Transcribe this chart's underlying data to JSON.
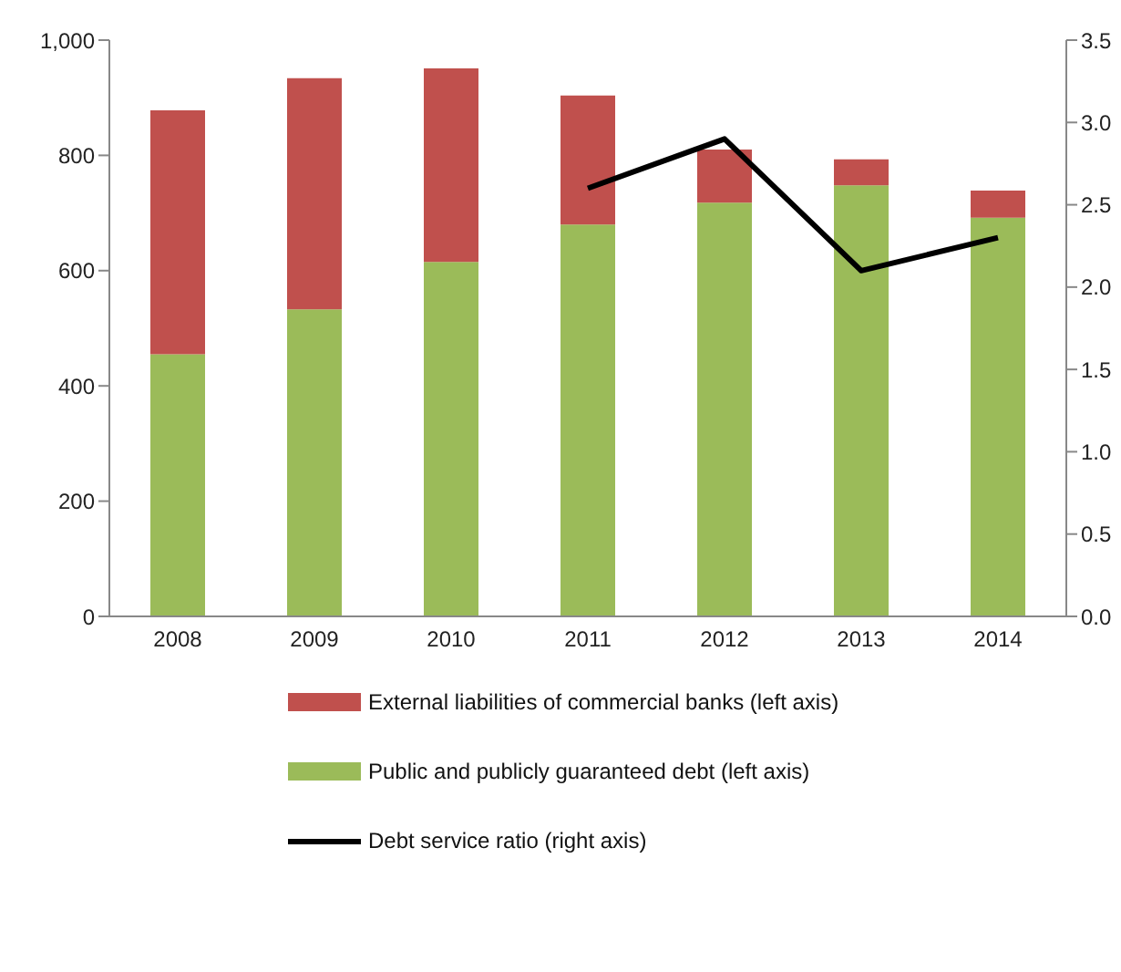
{
  "chart_data": {
    "type": "bar",
    "stacked": true,
    "categories": [
      "2008",
      "2009",
      "2010",
      "2011",
      "2012",
      "2013",
      "2014"
    ],
    "series": [
      {
        "name": "Public and publicly guaranteed debt (left axis)",
        "color": "#9bbb59",
        "values": [
          455,
          533,
          615,
          680,
          718,
          748,
          692
        ]
      },
      {
        "name": "External liabilities of commercial banks (left axis)",
        "color": "#c0504d",
        "values": [
          423,
          401,
          336,
          224,
          92,
          45,
          47
        ]
      },
      {
        "name": "Debt service ratio (right axis)",
        "type": "line",
        "axis": "y2",
        "color": "#000000",
        "values": [
          null,
          null,
          null,
          2.6,
          2.9,
          2.1,
          2.3
        ]
      }
    ],
    "ylim": [
      0,
      1000
    ],
    "yticks": [
      0,
      200,
      400,
      600,
      800,
      {
        "value": 1000,
        "label": "1,000"
      }
    ],
    "y2lim": [
      0,
      3.5
    ],
    "y2ticks": [
      {
        "value": 0,
        "label": "0.0"
      },
      {
        "value": 0.5,
        "label": "0.5"
      },
      {
        "value": 1,
        "label": "1.0"
      },
      {
        "value": 1.5,
        "label": "1.5"
      },
      {
        "value": 2,
        "label": "2.0"
      },
      {
        "value": 2.5,
        "label": "2.5"
      },
      {
        "value": 3,
        "label": "3.0"
      },
      {
        "value": 3.5,
        "label": "3.5"
      }
    ],
    "grid": false,
    "legend": "bottom",
    "marker": "none"
  }
}
